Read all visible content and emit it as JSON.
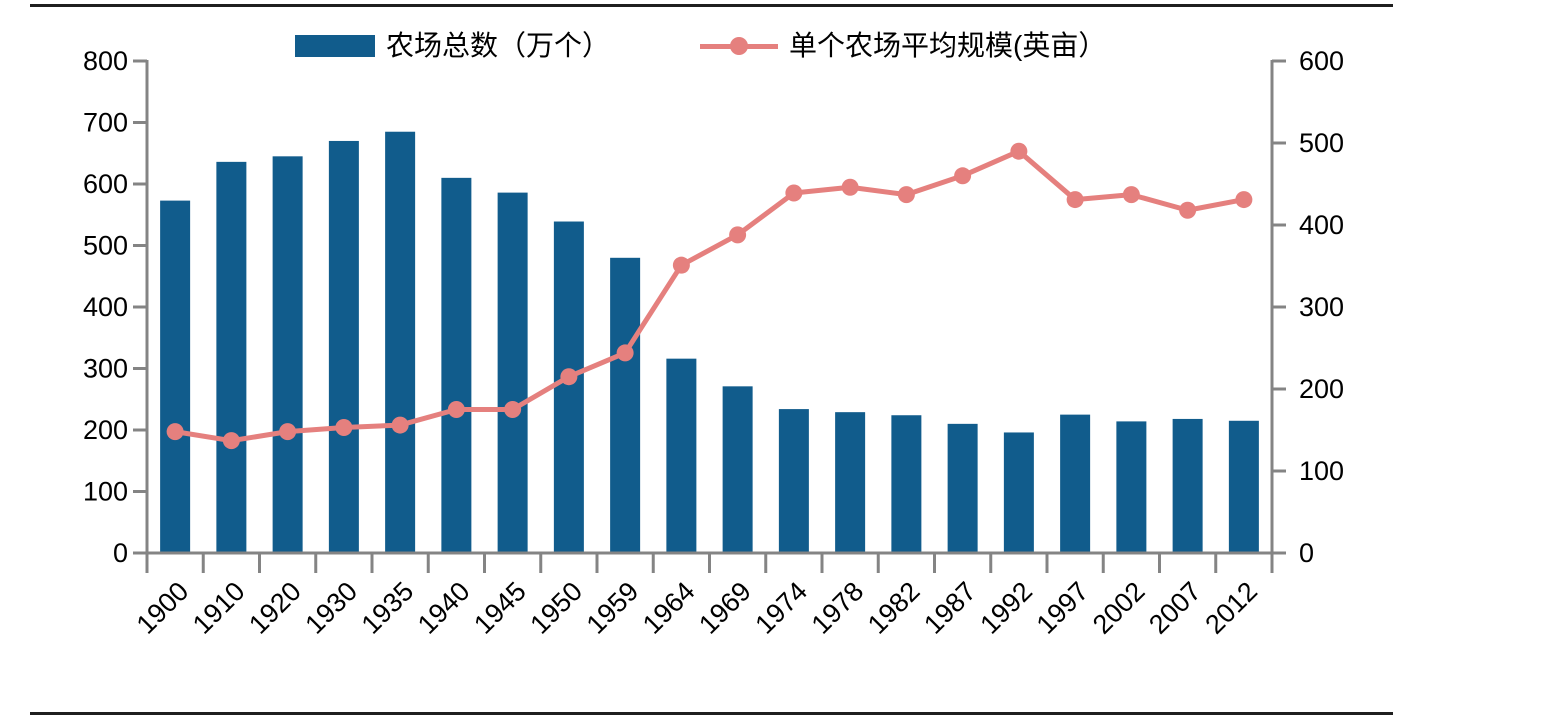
{
  "page": {
    "background": "#ffffff",
    "rule_color": "#1f1f1f"
  },
  "legend": {
    "items": [
      {
        "label": "农场总数（万个）",
        "marker": "bar-swatch"
      },
      {
        "label": "单个农场平均规模(英亩）",
        "marker": "line-dot-marker"
      }
    ]
  },
  "colors": {
    "bar": "#115C8C",
    "line": "#E5807E",
    "axis": "#848484",
    "text": "#000000"
  },
  "chart_data": {
    "type": "bar+line (dual axis)",
    "title": "",
    "categories": [
      "1900",
      "1910",
      "1920",
      "1930",
      "1935",
      "1940",
      "1945",
      "1950",
      "1959",
      "1964",
      "1969",
      "1974",
      "1978",
      "1982",
      "1987",
      "1992",
      "1997",
      "2002",
      "2007",
      "2012"
    ],
    "series": [
      {
        "name": "农场总数（万个）",
        "type": "bar",
        "axis": "left",
        "color": "#115C8C",
        "values": [
          573,
          636,
          645,
          670,
          685,
          610,
          586,
          539,
          480,
          316,
          271,
          234,
          229,
          224,
          210,
          196,
          225,
          214,
          218,
          215
        ]
      },
      {
        "name": "单个农场平均规模(英亩）",
        "type": "line",
        "axis": "right",
        "color": "#E5807E",
        "values": [
          148,
          137,
          148,
          153,
          156,
          175,
          175,
          215,
          244,
          351,
          388,
          439,
          446,
          437,
          460,
          490,
          431,
          437,
          418,
          431
        ]
      }
    ],
    "left_axis": {
      "min": 0,
      "max": 800,
      "step": 100,
      "tick_labels": [
        "0",
        "100",
        "200",
        "300",
        "400",
        "500",
        "600",
        "700",
        "800"
      ]
    },
    "right_axis": {
      "min": 0,
      "max": 600,
      "step": 100,
      "tick_labels": [
        "0",
        "100",
        "200",
        "300",
        "400",
        "500",
        "600"
      ]
    },
    "grid": false,
    "legend_position": "top"
  }
}
